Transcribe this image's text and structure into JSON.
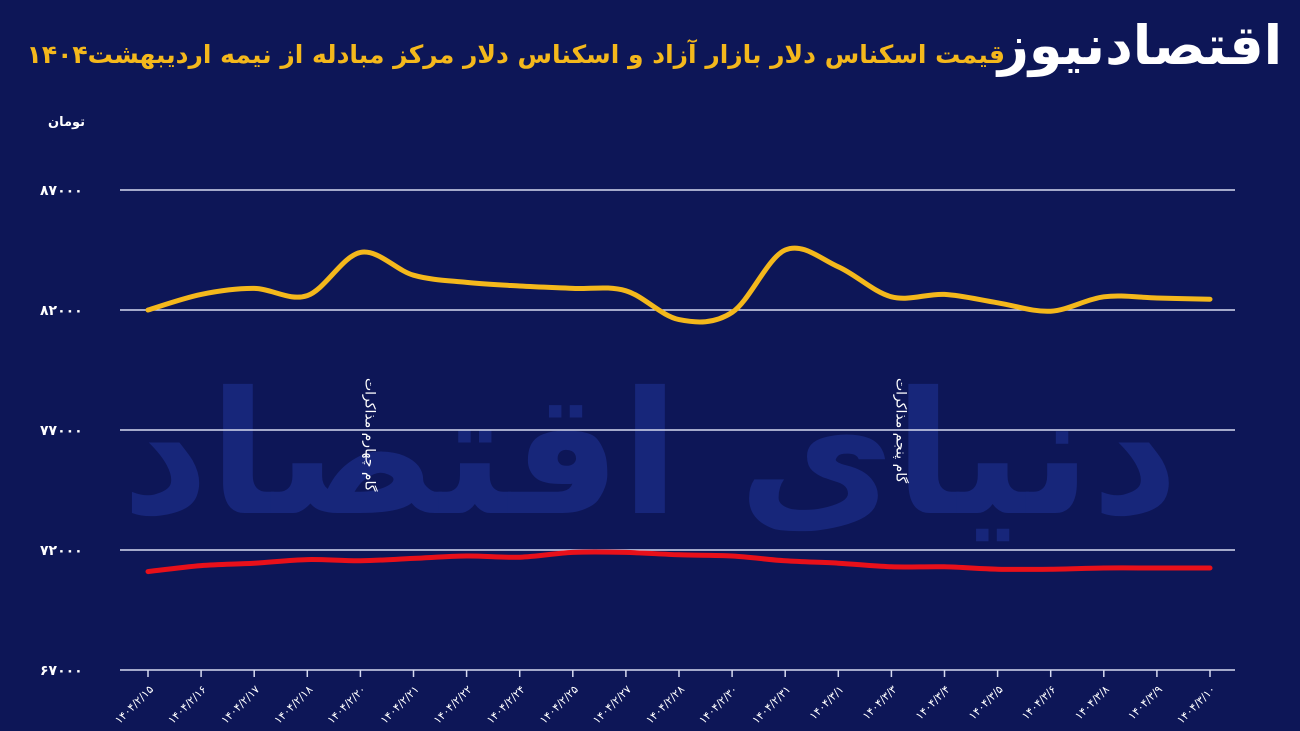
{
  "header": {
    "title": "قیمت اسکناس دلار بازار آزاد و اسکناس دلار مرکز مبادله از نیمه اردیبهشت۱۴۰۴",
    "logo_text": "اقتصادنیوز"
  },
  "watermark_text": "دنیای اقتصاد",
  "chart_data": {
    "type": "line",
    "title": "قیمت اسکناس دلار بازار آزاد و اسکناس دلار مرکز مبادله از نیمه اردیبهشت۱۴۰۴",
    "ylabel": "تومان",
    "xlabel": "",
    "ylim": [
      67000,
      87000
    ],
    "y_ticks": [
      {
        "value": 87000,
        "label": "۸۷۰۰۰"
      },
      {
        "value": 82000,
        "label": "۸۲۰۰۰"
      },
      {
        "value": 77000,
        "label": "۷۷۰۰۰"
      },
      {
        "value": 72000,
        "label": "۷۲۰۰۰"
      },
      {
        "value": 67000,
        "label": "۶۷۰۰۰"
      }
    ],
    "x": [
      "۱۴۰۴/۲/۱۵",
      "۱۴۰۴/۲/۱۶",
      "۱۴۰۴/۲/۱۷",
      "۱۴۰۴/۲/۱۸",
      "۱۴۰۴/۲/۲۰",
      "۱۴۰۴/۲/۲۱",
      "۱۴۰۴/۲/۲۲",
      "۱۴۰۴/۲/۲۴",
      "۱۴۰۴/۲/۲۵",
      "۱۴۰۴/۲/۲۷",
      "۱۴۰۴/۲/۲۸",
      "۱۴۰۴/۲/۳۰",
      "۱۴۰۴/۲/۳۱",
      "۱۴۰۴/۳/۱",
      "۱۴۰۴/۳/۳",
      "۱۴۰۴/۳/۴",
      "۱۴۰۴/۳/۵",
      "۱۴۰۴/۳/۶",
      "۱۴۰۴/۳/۸",
      "۱۴۰۴/۳/۹",
      "۱۴۰۴/۳/۱۰"
    ],
    "grid": true,
    "series": [
      {
        "values": [
          82000,
          82650,
          82900,
          82600,
          84400,
          83450,
          83150,
          83000,
          82900,
          82800,
          81600,
          81900,
          84500,
          83800,
          82550,
          82650,
          82300,
          81950,
          82550,
          82500,
          82450
        ],
        "color": "#f4b81c"
      },
      {
        "values": [
          71100,
          71350,
          71450,
          71600,
          71550,
          71650,
          71750,
          71700,
          71900,
          71900,
          71800,
          71750,
          71550,
          71450,
          71300,
          71300,
          71200,
          71200,
          71250,
          71250,
          71250
        ],
        "color": "#e8101a"
      }
    ],
    "annotations": [
      {
        "text": "گام چهارم مذاکرات",
        "x_index": 4
      },
      {
        "text": "گام پنجم مذاکرات",
        "x_index": 14
      }
    ]
  }
}
